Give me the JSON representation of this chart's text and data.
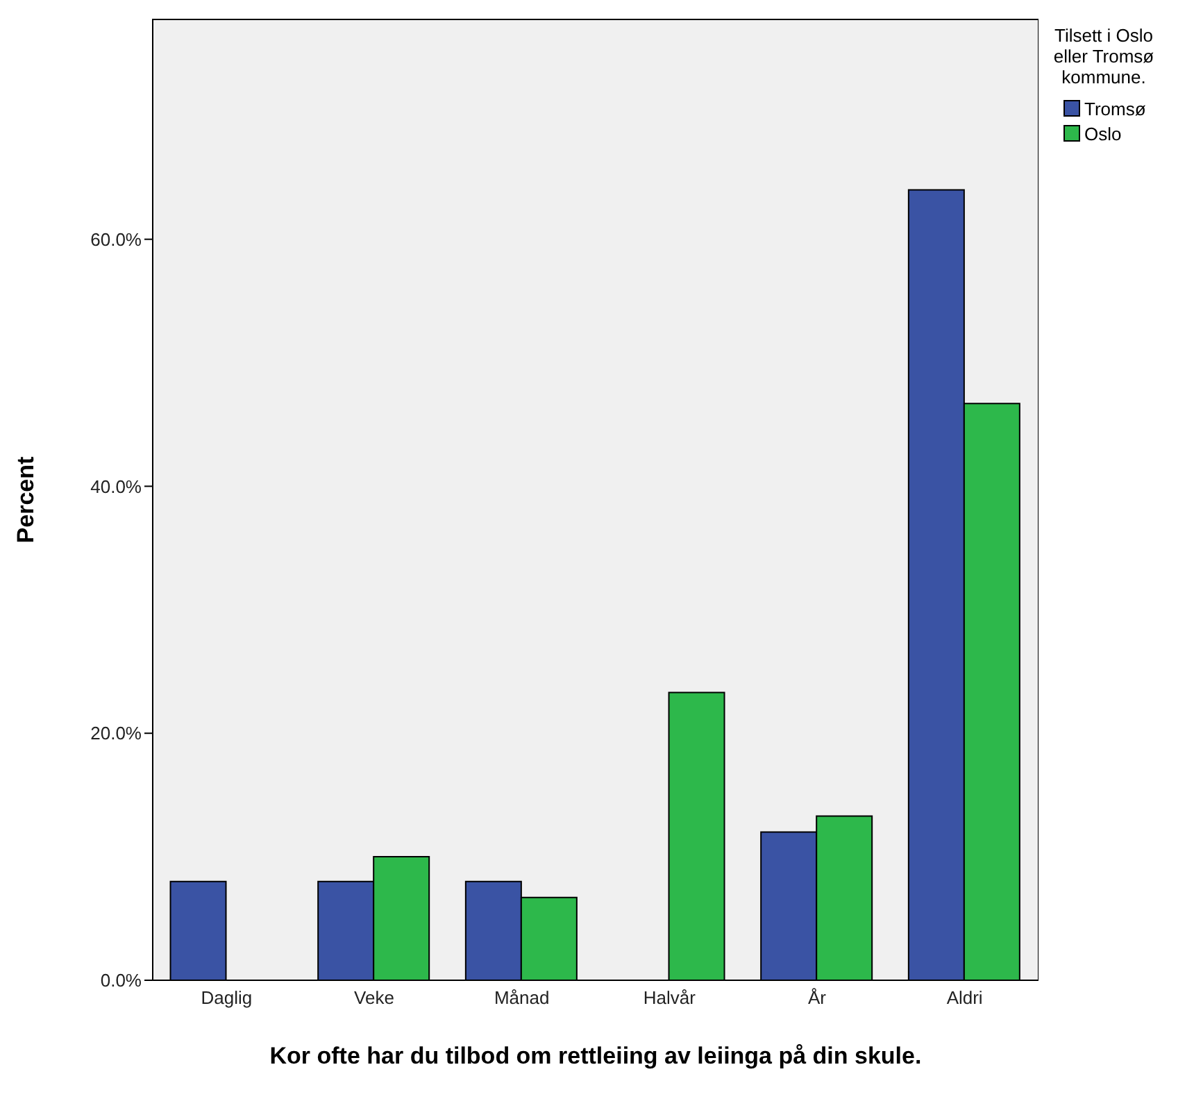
{
  "chart_data": {
    "type": "bar",
    "xlabel": "Kor ofte har du tilbod om rettleiing av leiinga på din skule.",
    "ylabel": "Percent",
    "legend_title": "Tilsett i Oslo eller Tromsø kommune.",
    "legend": "top right",
    "categories": [
      "Daglig",
      "Veke",
      "Månad",
      "Halvår",
      "År",
      "Aldri"
    ],
    "series": [
      {
        "name": "Tromsø",
        "color": "#3a53a4",
        "values": [
          8.0,
          8.0,
          8.0,
          0,
          12.0,
          64.0
        ]
      },
      {
        "name": "Oslo",
        "color": "#2db84b",
        "values": [
          0,
          10.0,
          6.7,
          23.3,
          13.3,
          46.7
        ]
      }
    ],
    "ylim": [
      0,
      77.8
    ],
    "yticks": [
      {
        "value": 0,
        "label": "0.0%"
      },
      {
        "value": 20,
        "label": "20.0%"
      },
      {
        "value": 40,
        "label": "40.0%"
      },
      {
        "value": 60,
        "label": "60.0%"
      }
    ]
  }
}
